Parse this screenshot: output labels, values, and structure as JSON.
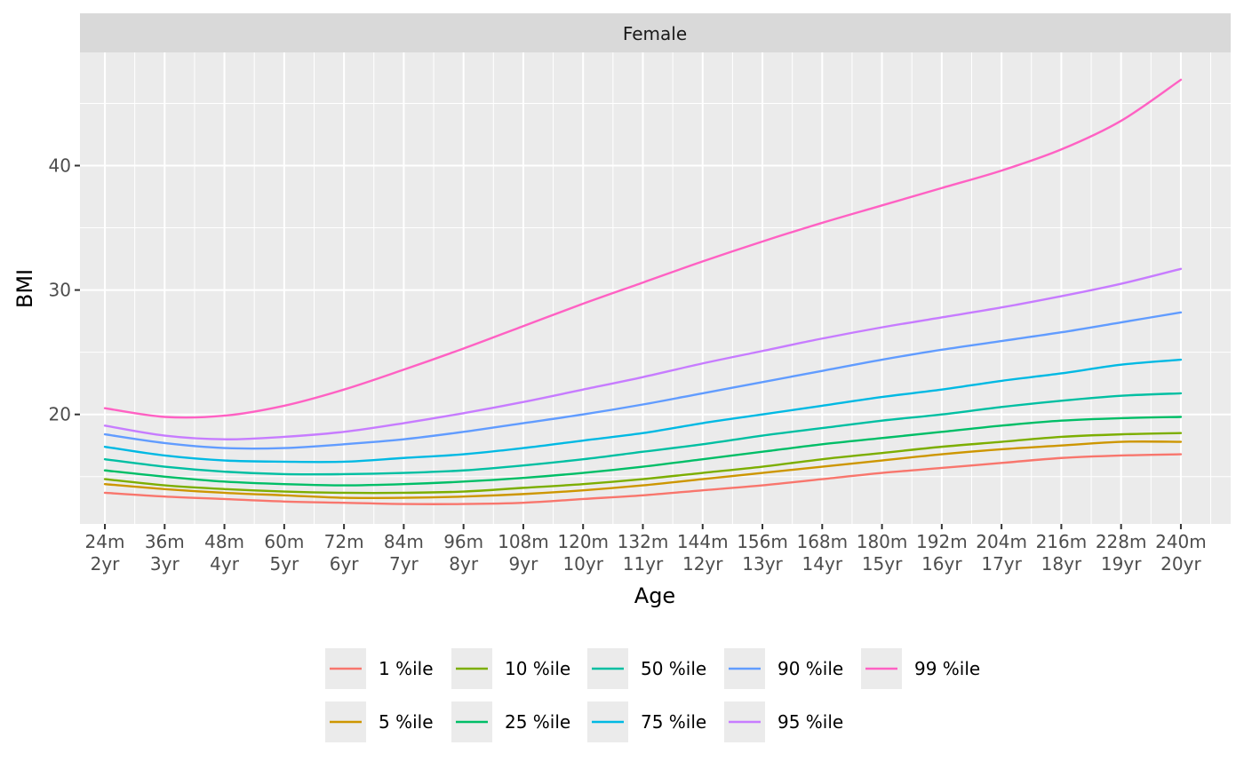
{
  "chart_data": {
    "type": "line",
    "facet_label": "Female",
    "xlabel": "Age",
    "ylabel": "BMI",
    "xlim": [
      19,
      250
    ],
    "ylim": [
      11.2,
      49.1
    ],
    "x_ticks": [
      24,
      36,
      48,
      60,
      72,
      84,
      96,
      108,
      120,
      132,
      144,
      156,
      168,
      180,
      192,
      204,
      216,
      228,
      240
    ],
    "x_tick_labels": [
      {
        "top": "24m",
        "bottom": "2yr"
      },
      {
        "top": "36m",
        "bottom": "3yr"
      },
      {
        "top": "48m",
        "bottom": "4yr"
      },
      {
        "top": "60m",
        "bottom": "5yr"
      },
      {
        "top": "72m",
        "bottom": "6yr"
      },
      {
        "top": "84m",
        "bottom": "7yr"
      },
      {
        "top": "96m",
        "bottom": "8yr"
      },
      {
        "top": "108m",
        "bottom": "9yr"
      },
      {
        "top": "120m",
        "bottom": "10yr"
      },
      {
        "top": "132m",
        "bottom": "11yr"
      },
      {
        "top": "144m",
        "bottom": "12yr"
      },
      {
        "top": "156m",
        "bottom": "13yr"
      },
      {
        "top": "168m",
        "bottom": "14yr"
      },
      {
        "top": "180m",
        "bottom": "15yr"
      },
      {
        "top": "192m",
        "bottom": "16yr"
      },
      {
        "top": "204m",
        "bottom": "17yr"
      },
      {
        "top": "216m",
        "bottom": "18yr"
      },
      {
        "top": "228m",
        "bottom": "19yr"
      },
      {
        "top": "240m",
        "bottom": "20yr"
      }
    ],
    "y_ticks": [
      20,
      30,
      40
    ],
    "y_tick_labels": [
      "20",
      "30",
      "40"
    ],
    "grid": true,
    "legend_position": "bottom",
    "x": [
      24,
      36,
      48,
      60,
      72,
      84,
      96,
      108,
      120,
      132,
      144,
      156,
      168,
      180,
      192,
      204,
      216,
      228,
      240
    ],
    "series": [
      {
        "name": "1 %ile",
        "color": "#F8766D",
        "values": [
          13.7,
          13.4,
          13.2,
          13.0,
          12.9,
          12.8,
          12.8,
          12.9,
          13.2,
          13.5,
          13.9,
          14.3,
          14.8,
          15.3,
          15.7,
          16.1,
          16.5,
          16.7,
          16.8
        ]
      },
      {
        "name": "5 %ile",
        "color": "#CD9600",
        "values": [
          14.4,
          14.0,
          13.7,
          13.5,
          13.3,
          13.3,
          13.4,
          13.6,
          13.9,
          14.3,
          14.8,
          15.3,
          15.8,
          16.3,
          16.8,
          17.2,
          17.5,
          17.8,
          17.8
        ]
      },
      {
        "name": "10 %ile",
        "color": "#7CAE00",
        "values": [
          14.8,
          14.3,
          14.0,
          13.8,
          13.7,
          13.7,
          13.8,
          14.1,
          14.4,
          14.8,
          15.3,
          15.8,
          16.4,
          16.9,
          17.4,
          17.8,
          18.2,
          18.4,
          18.5
        ]
      },
      {
        "name": "25 %ile",
        "color": "#00BE67",
        "values": [
          15.5,
          15.0,
          14.6,
          14.4,
          14.3,
          14.4,
          14.6,
          14.9,
          15.3,
          15.8,
          16.4,
          17.0,
          17.6,
          18.1,
          18.6,
          19.1,
          19.5,
          19.7,
          19.8
        ]
      },
      {
        "name": "50 %ile",
        "color": "#00BFA2",
        "values": [
          16.4,
          15.8,
          15.4,
          15.2,
          15.2,
          15.3,
          15.5,
          15.9,
          16.4,
          17.0,
          17.6,
          18.3,
          18.9,
          19.5,
          20.0,
          20.6,
          21.1,
          21.5,
          21.7
        ]
      },
      {
        "name": "75 %ile",
        "color": "#00B9E3",
        "values": [
          17.4,
          16.7,
          16.3,
          16.2,
          16.2,
          16.5,
          16.8,
          17.3,
          17.9,
          18.5,
          19.3,
          20.0,
          20.7,
          21.4,
          22.0,
          22.7,
          23.3,
          24.0,
          24.4
        ]
      },
      {
        "name": "90 %ile",
        "color": "#619CFF",
        "values": [
          18.4,
          17.7,
          17.3,
          17.3,
          17.6,
          18.0,
          18.6,
          19.3,
          20.0,
          20.8,
          21.7,
          22.6,
          23.5,
          24.4,
          25.2,
          25.9,
          26.6,
          27.4,
          28.2
        ]
      },
      {
        "name": "95 %ile",
        "color": "#C77CFF",
        "values": [
          19.1,
          18.3,
          18.0,
          18.2,
          18.6,
          19.3,
          20.1,
          21.0,
          22.0,
          23.0,
          24.1,
          25.1,
          26.1,
          27.0,
          27.8,
          28.6,
          29.5,
          30.5,
          31.7
        ]
      },
      {
        "name": "99 %ile",
        "color": "#FF61C3",
        "values": [
          20.5,
          19.8,
          19.9,
          20.7,
          22.0,
          23.6,
          25.3,
          27.1,
          28.9,
          30.6,
          32.3,
          33.9,
          35.4,
          36.8,
          38.2,
          39.6,
          41.3,
          43.6,
          46.9
        ]
      }
    ],
    "legend_rows": [
      [
        "1 %ile",
        "10 %ile",
        "50 %ile",
        "90 %ile",
        "99 %ile"
      ],
      [
        "5 %ile",
        "25 %ile",
        "75 %ile",
        "95 %ile"
      ]
    ]
  }
}
